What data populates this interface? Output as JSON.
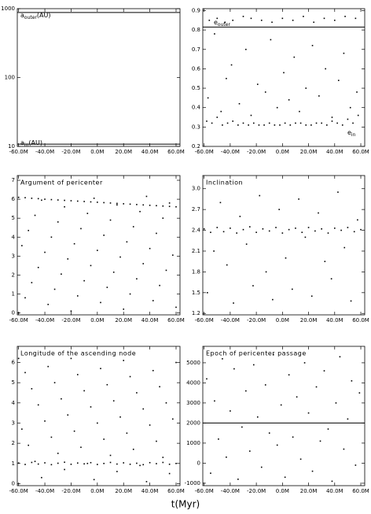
{
  "xlabel": "t(Myr)",
  "chart_data": [
    {
      "type": "line",
      "log_y": true,
      "ylim": [
        10,
        1000
      ],
      "yticks": [
        10,
        100,
        1000
      ],
      "xlim": [
        -61,
        63
      ],
      "xticks": [
        {
          "value": -60,
          "label": "-60.0M"
        },
        {
          "value": -40,
          "label": "-40.0M"
        },
        {
          "value": -20,
          "label": "-20.0M"
        },
        {
          "value": 0,
          "label": "0.0M"
        },
        {
          "value": 20,
          "label": "20.0M"
        },
        {
          "value": 40,
          "label": "40.0M"
        },
        {
          "value": 60,
          "label": "60.0M"
        }
      ],
      "series": [
        {
          "name": "a",
          "subscript": "outer",
          "suffix": "(AU)",
          "color": "#000000",
          "x": [
            -61,
            63
          ],
          "values": [
            880,
            880
          ]
        },
        {
          "name": "a",
          "subscript": "in",
          "suffix": "(AU)",
          "color": "#000000",
          "x": [
            -61,
            63
          ],
          "values": [
            10.8,
            10.8
          ]
        }
      ]
    },
    {
      "type": "scatter",
      "ylim": [
        0.2,
        0.91
      ],
      "yticks": [
        0.2,
        0.3,
        0.4,
        0.5,
        0.6,
        0.7,
        0.8,
        0.9
      ],
      "xlim": [
        -61,
        63
      ],
      "xticks": [
        {
          "value": -60,
          "label": "-60.0M"
        },
        {
          "value": -40,
          "label": "-40.0M"
        },
        {
          "value": -20,
          "label": "-20.0M"
        },
        {
          "value": 0,
          "label": "0.0M"
        },
        {
          "value": 20,
          "label": "20.0M"
        },
        {
          "value": 40,
          "label": "40.0M"
        },
        {
          "value": 60,
          "label": "60.0M"
        }
      ],
      "series": [
        {
          "type": "line",
          "name": "e",
          "subscript": "outer",
          "color": "#000000",
          "x": [
            -61,
            63
          ],
          "values": [
            0.815,
            0.815
          ]
        },
        {
          "name": "e",
          "subscript": "in",
          "color": "#000000",
          "x": [
            -58,
            -54,
            -50,
            -46,
            -42,
            -38,
            -34,
            -30,
            -26,
            -22,
            -18,
            -14,
            -10,
            -6,
            -2,
            2,
            6,
            10,
            14,
            18,
            22,
            26,
            30,
            34,
            38,
            42,
            46,
            50,
            54,
            58,
            -56,
            -50,
            -44,
            -38,
            -30,
            -24,
            -16,
            -8,
            0,
            8,
            16,
            24,
            32,
            40,
            48,
            56,
            -57,
            -52,
            -47,
            -43,
            -39,
            -33,
            -28,
            -24,
            -19,
            -13,
            -9,
            -4,
            1,
            5,
            9,
            13,
            18,
            23,
            28,
            33,
            38,
            43,
            47,
            52,
            57
          ],
          "values": [
            0.33,
            0.32,
            0.35,
            0.31,
            0.32,
            0.33,
            0.31,
            0.32,
            0.31,
            0.32,
            0.31,
            0.31,
            0.32,
            0.31,
            0.31,
            0.32,
            0.31,
            0.32,
            0.32,
            0.31,
            0.31,
            0.32,
            0.32,
            0.31,
            0.33,
            0.32,
            0.31,
            0.34,
            0.32,
            0.36,
            0.85,
            0.86,
            0.84,
            0.85,
            0.87,
            0.86,
            0.85,
            0.84,
            0.86,
            0.85,
            0.87,
            0.84,
            0.86,
            0.85,
            0.87,
            0.86,
            0.45,
            0.78,
            0.38,
            0.55,
            0.62,
            0.42,
            0.7,
            0.36,
            0.52,
            0.48,
            0.75,
            0.4,
            0.58,
            0.44,
            0.66,
            0.38,
            0.5,
            0.72,
            0.46,
            0.6,
            0.35,
            0.54,
            0.68,
            0.4,
            0.48
          ]
        }
      ]
    },
    {
      "type": "scatter",
      "title": "Argument of pericenter",
      "ylim": [
        -0.1,
        7.25
      ],
      "yticks": [
        0,
        1,
        2,
        3,
        4,
        5,
        6,
        7
      ],
      "xlim": [
        -61,
        63
      ],
      "xticks": [
        {
          "value": -60,
          "label": "-60.0M"
        },
        {
          "value": -40,
          "label": "-40.0M"
        },
        {
          "value": -20,
          "label": "-20.0M"
        },
        {
          "value": 0,
          "label": "0.0M"
        },
        {
          "value": 20,
          "label": "20.0M"
        },
        {
          "value": 40,
          "label": "40.0M"
        },
        {
          "value": 60,
          "label": "60.0M"
        }
      ],
      "series": [
        {
          "color": "#000000",
          "x": [
            -60,
            -55,
            -50,
            -45,
            -40,
            -35,
            -30,
            -25,
            -20,
            -15,
            -10,
            -5,
            0,
            5,
            10,
            15,
            20,
            25,
            30,
            35,
            40,
            45,
            50,
            55,
            60
          ],
          "values": [
            6.1,
            6.08,
            6.05,
            6.03,
            6.0,
            5.98,
            5.96,
            5.94,
            5.92,
            5.9,
            5.88,
            5.86,
            5.84,
            5.82,
            5.8,
            5.78,
            5.76,
            5.74,
            5.72,
            5.7,
            5.68,
            5.66,
            5.64,
            5.62,
            5.6
          ]
        },
        {
          "color": "#000000",
          "x": [
            -60,
            -55,
            -50,
            -45,
            -40,
            -35,
            -30,
            -25,
            -20,
            -15,
            -10,
            -5,
            0,
            5,
            10,
            15,
            20,
            25,
            30,
            35,
            40,
            45,
            50,
            55,
            60,
            -57.5,
            -52.5,
            -47.5,
            -42.5,
            -37.5,
            -32.5,
            -27.5,
            -22.5,
            -17.5,
            -12.5,
            -7.5,
            -2.5,
            2.5,
            7.5,
            12.5,
            17.5,
            22.5,
            27.5,
            32.5,
            37.5,
            42.5,
            47.5,
            52.5,
            57.5
          ],
          "values": [
            0,
            0.8,
            1.6,
            2.4,
            3.2,
            4.0,
            4.8,
            5.6,
            0.1,
            0.9,
            1.7,
            2.5,
            3.3,
            4.1,
            4.9,
            5.7,
            0.2,
            1.0,
            1.8,
            2.6,
            3.4,
            4.2,
            5.0,
            5.8,
            0.3,
            3.55,
            4.35,
            5.15,
            5.95,
            0.45,
            1.25,
            2.05,
            2.85,
            3.65,
            4.45,
            5.25,
            6.05,
            0.55,
            1.35,
            2.15,
            2.95,
            3.75,
            4.55,
            5.35,
            6.15,
            0.65,
            1.45,
            2.25,
            3.05
          ]
        }
      ]
    },
    {
      "type": "scatter",
      "title": "Inclination",
      "ylim": [
        1.18,
        3.19
      ],
      "yticks": [
        1.2,
        1.5,
        1.8,
        2.1,
        2.4,
        2.7,
        {
          "value": 3,
          "label": "3.0"
        }
      ],
      "xlim": [
        -61,
        63
      ],
      "xticks": [
        {
          "value": -60,
          "label": "-60.0M"
        },
        {
          "value": -40,
          "label": "-40.0M"
        },
        {
          "value": -20,
          "label": "-20.0M"
        },
        {
          "value": 0,
          "label": "0.0M"
        },
        {
          "value": 20,
          "label": "20.0M"
        },
        {
          "value": 40,
          "label": "40.0M"
        },
        {
          "value": 60,
          "label": "60.0M"
        }
      ],
      "series": [
        {
          "color": "#000000",
          "x": [
            -60,
            -55,
            -50,
            -45,
            -40,
            -35,
            -30,
            -25,
            -20,
            -15,
            -10,
            -5,
            0,
            5,
            10,
            15,
            20,
            25,
            30,
            35,
            40,
            45,
            50,
            55,
            60
          ],
          "values": [
            2.42,
            2.37,
            2.44,
            2.38,
            2.43,
            2.36,
            2.41,
            2.45,
            2.37,
            2.42,
            2.39,
            2.44,
            2.36,
            2.41,
            2.43,
            2.37,
            2.44,
            2.39,
            2.42,
            2.36,
            2.43,
            2.4,
            2.44,
            2.38,
            2.41
          ]
        },
        {
          "color": "#000000",
          "x": [
            -57.5,
            -52.5,
            -47.5,
            -42.5,
            -37.5,
            -32.5,
            -27.5,
            -22.5,
            -17.5,
            -12.5,
            -7.5,
            -2.5,
            2.5,
            7.5,
            12.5,
            17.5,
            22.5,
            27.5,
            32.5,
            37.5,
            42.5,
            47.5,
            52.5,
            57.5
          ],
          "values": [
            1.5,
            2.1,
            2.8,
            1.9,
            1.35,
            2.6,
            2.2,
            1.6,
            2.9,
            1.8,
            1.4,
            2.7,
            2.0,
            1.55,
            2.85,
            2.3,
            1.45,
            2.65,
            1.95,
            1.7,
            2.95,
            2.15,
            1.38,
            2.55
          ]
        }
      ]
    },
    {
      "type": "scatter",
      "title": "Longitude of the ascending node",
      "ylim": [
        -0.1,
        6.8
      ],
      "yticks": [
        0,
        1,
        2,
        3,
        4,
        5,
        6
      ],
      "xlim": [
        -61,
        63
      ],
      "xticks": [
        {
          "value": -60,
          "label": "-60.0M"
        },
        {
          "value": -40,
          "label": "-40.0M"
        },
        {
          "value": -20,
          "label": "-20.0M"
        },
        {
          "value": 0,
          "label": "0.0M"
        },
        {
          "value": 20,
          "label": "20.0M"
        },
        {
          "value": 40,
          "label": "40.0M"
        },
        {
          "value": 60,
          "label": "60.0M"
        }
      ],
      "series": [
        {
          "color": "#000000",
          "x": [
            -60,
            -55,
            -50,
            -45,
            -40,
            -35,
            -30,
            -25,
            -20,
            -15,
            -10,
            -5,
            0,
            5,
            10,
            15,
            20,
            25,
            30,
            35,
            40,
            45,
            50,
            55,
            60
          ],
          "values": [
            1.02,
            0.95,
            1.05,
            0.97,
            1.03,
            0.94,
            1.01,
            1.06,
            0.96,
            1.02,
            0.98,
            1.04,
            0.95,
            1.0,
            1.05,
            0.97,
            1.03,
            0.96,
            1.01,
            0.94,
            1.04,
            0.99,
            1.05,
            0.96,
            1.0
          ]
        },
        {
          "color": "#000000",
          "x": [
            -60,
            -55,
            -50,
            -45,
            -40,
            -35,
            -30,
            -25,
            -20,
            -15,
            -10,
            -5,
            0,
            5,
            10,
            15,
            20,
            25,
            30,
            35,
            40,
            45,
            50,
            55,
            60,
            -57.5,
            -52.5,
            -47.5,
            -42.5,
            -37.5,
            -32.5,
            -27.5,
            -22.5,
            -17.5,
            -12.5,
            -7.5,
            -2.5,
            2.5,
            7.5,
            12.5,
            17.5,
            22.5,
            27.5,
            32.5,
            37.5,
            42.5,
            47.5,
            52.5,
            57.5
          ],
          "values": [
            6.2,
            5.5,
            4.7,
            3.9,
            3.1,
            2.3,
            1.5,
            0.7,
            6.2,
            5.4,
            4.6,
            3.8,
            3.0,
            2.2,
            1.4,
            0.6,
            6.1,
            5.3,
            4.5,
            3.7,
            2.9,
            2.1,
            1.3,
            0.5,
            6.0,
            2.7,
            1.9,
            1.1,
            0.3,
            5.8,
            5.0,
            4.2,
            3.4,
            2.6,
            1.8,
            1.0,
            0.2,
            5.7,
            4.9,
            4.1,
            3.3,
            2.5,
            1.7,
            0.9,
            0.1,
            5.6,
            4.8,
            4.0,
            3.2
          ]
        }
      ]
    },
    {
      "type": "scatter",
      "title": "Epoch of pericenter passage",
      "ylim": [
        -1120,
        5820
      ],
      "yticks": [
        -1000,
        0,
        1000,
        2000,
        3000,
        4000,
        5000
      ],
      "xlim": [
        -61,
        63
      ],
      "xticks": [
        {
          "value": -60,
          "label": "-60.0M"
        },
        {
          "value": -40,
          "label": "-40.0M"
        },
        {
          "value": -20,
          "label": "-20.0M"
        },
        {
          "value": 0,
          "label": "0.0M"
        },
        {
          "value": 20,
          "label": "20.0M"
        },
        {
          "value": 40,
          "label": "40.0M"
        },
        {
          "value": 60,
          "label": "60.0M"
        }
      ],
      "series": [
        {
          "type": "line",
          "color": "#000000",
          "x": [
            -61,
            63
          ],
          "values": [
            2000,
            2000
          ]
        },
        {
          "color": "#000000",
          "x": [
            -58,
            -55,
            -52,
            -49,
            -46,
            -43,
            -40,
            -37,
            -34,
            -31,
            -28,
            -25,
            -22,
            -19,
            -16,
            -13,
            -10,
            -7,
            -4,
            -1,
            2,
            5,
            8,
            11,
            14,
            17,
            20,
            23,
            26,
            29,
            32,
            35,
            38,
            41,
            44,
            47,
            50,
            53,
            56,
            59
          ],
          "values": [
            4200,
            -500,
            3100,
            1200,
            5200,
            300,
            2600,
            4700,
            -800,
            1800,
            3600,
            600,
            4900,
            2300,
            -200,
            3900,
            1500,
            5400,
            900,
            2900,
            -700,
            4400,
            1300,
            3300,
            200,
            5000,
            2500,
            -400,
            3800,
            1100,
            4600,
            1700,
            -900,
            3000,
            5300,
            700,
            2200,
            4100,
            -100,
            3500
          ]
        }
      ]
    }
  ]
}
